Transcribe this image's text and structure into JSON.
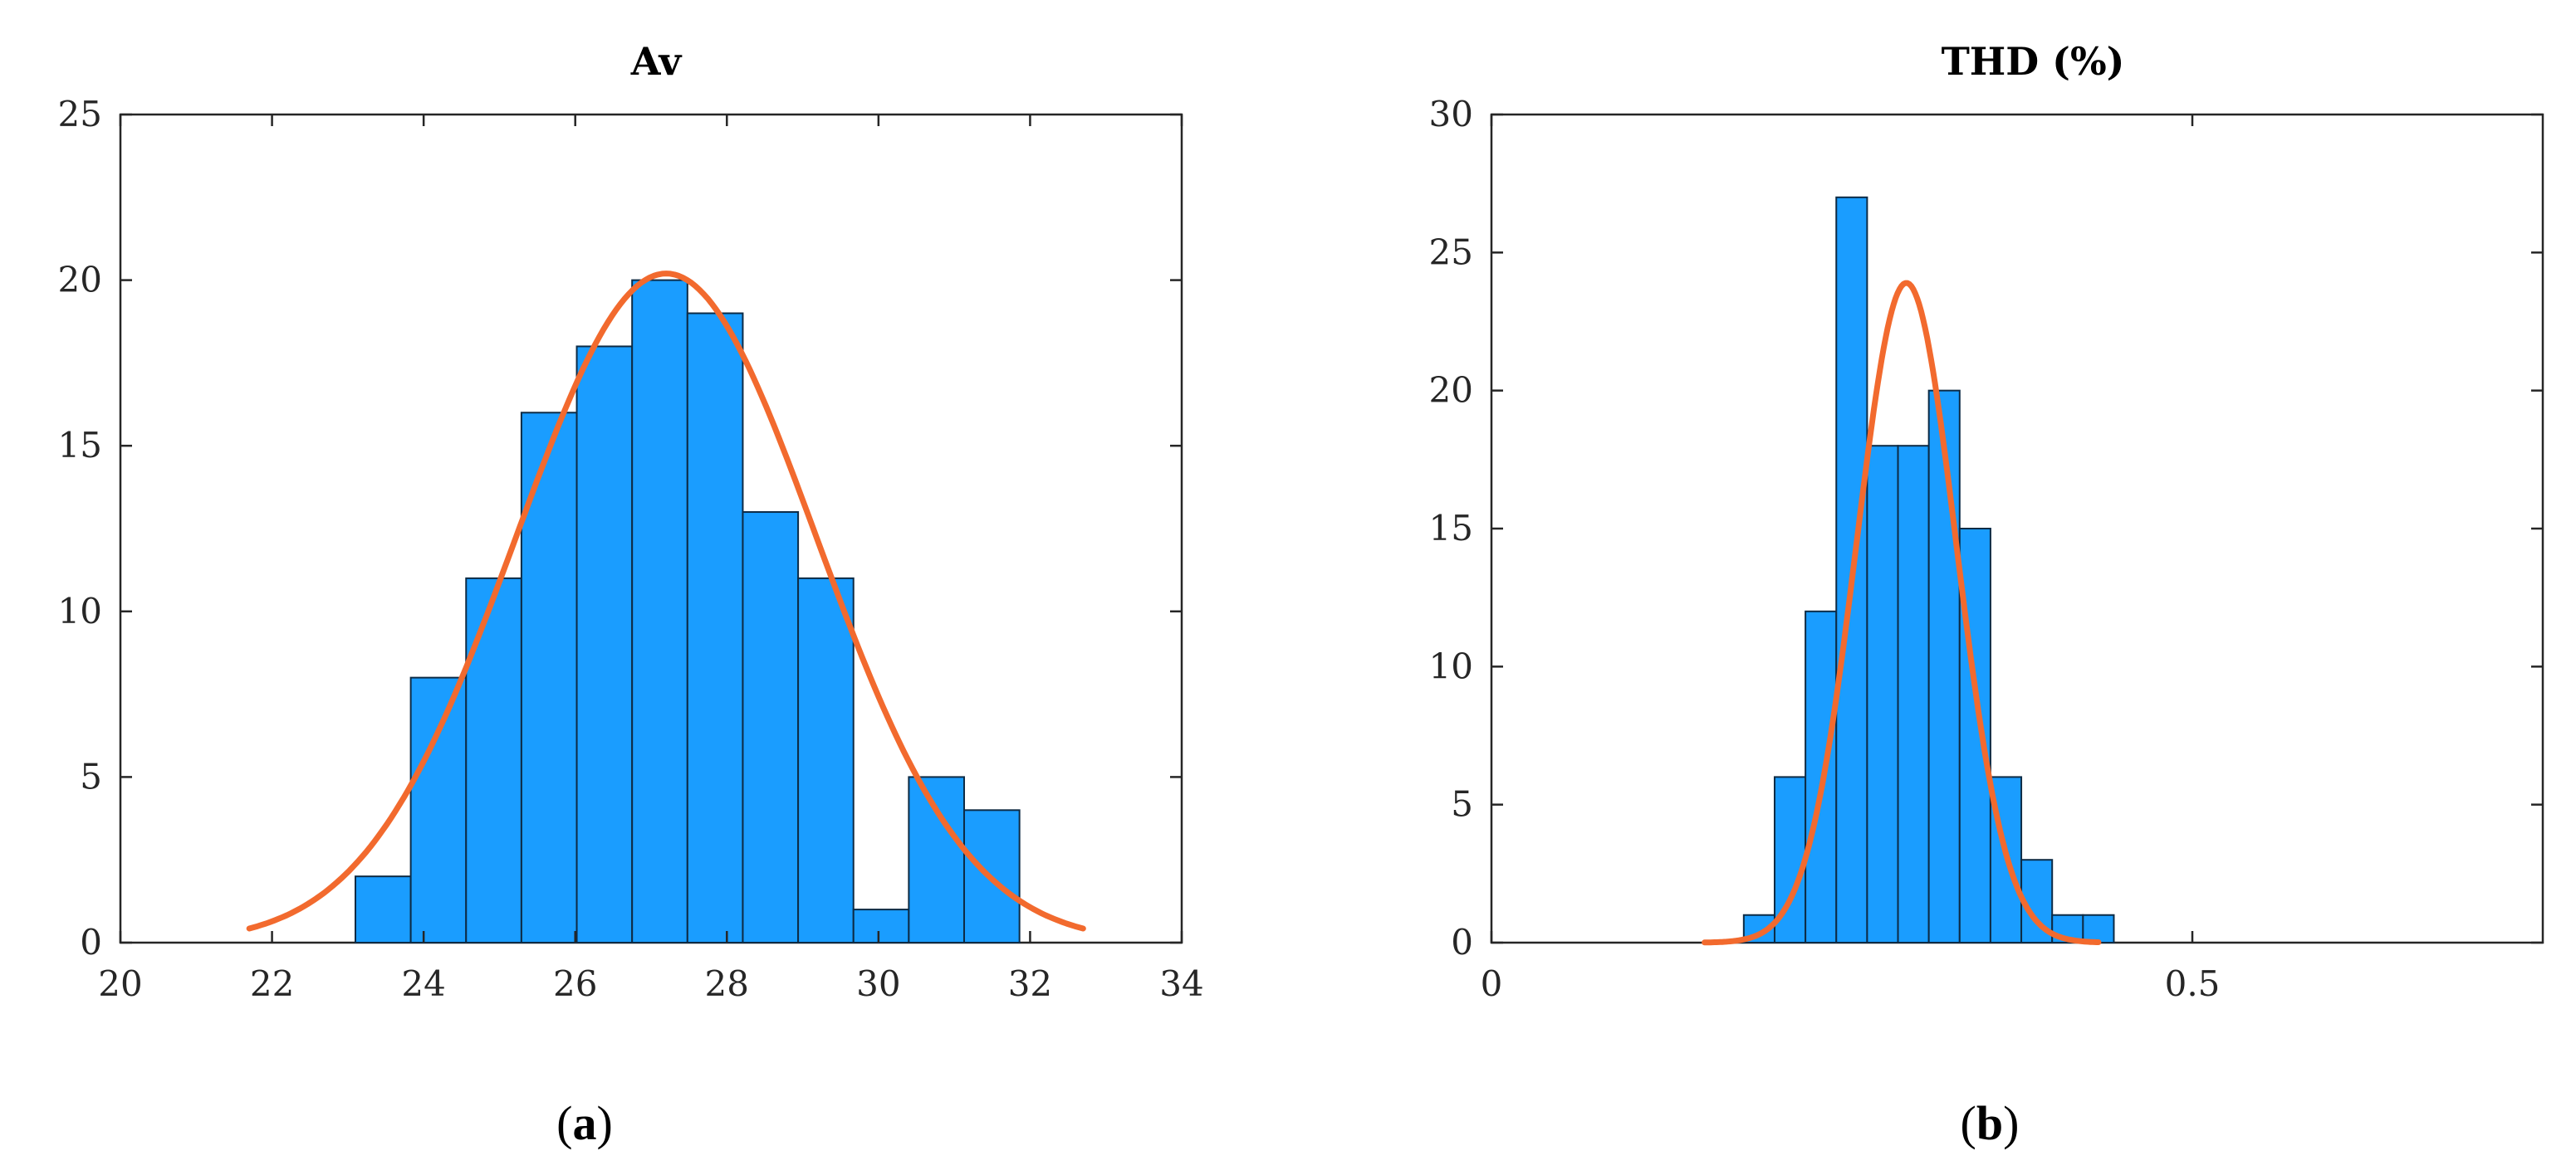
{
  "chart_data": [
    {
      "id": "a",
      "type": "bar",
      "title": "Av",
      "caption_prefix": "(",
      "caption_letter": "a",
      "caption_suffix": ")",
      "xlabel": "",
      "ylabel": "",
      "xlim": [
        20,
        34
      ],
      "ylim": [
        0,
        25
      ],
      "xticks": [
        20,
        22,
        24,
        26,
        28,
        30,
        32,
        34
      ],
      "yticks": [
        0,
        5,
        10,
        15,
        20,
        25
      ],
      "bins": [
        {
          "x0": 23.1,
          "x1": 23.83,
          "count": 2
        },
        {
          "x0": 23.83,
          "x1": 24.56,
          "count": 8
        },
        {
          "x0": 24.56,
          "x1": 25.29,
          "count": 11
        },
        {
          "x0": 25.29,
          "x1": 26.02,
          "count": 16
        },
        {
          "x0": 26.02,
          "x1": 26.75,
          "count": 18
        },
        {
          "x0": 26.75,
          "x1": 27.48,
          "count": 20
        },
        {
          "x0": 27.48,
          "x1": 28.21,
          "count": 19
        },
        {
          "x0": 28.21,
          "x1": 28.94,
          "count": 13
        },
        {
          "x0": 28.94,
          "x1": 29.67,
          "count": 11
        },
        {
          "x0": 29.67,
          "x1": 30.4,
          "count": 1
        },
        {
          "x0": 30.4,
          "x1": 31.13,
          "count": 5
        },
        {
          "x0": 31.13,
          "x1": 31.86,
          "count": 4
        }
      ],
      "fit": {
        "type": "normal",
        "mean": 27.2,
        "sd": 1.98,
        "peak": 20.2,
        "x_range": [
          21.7,
          32.7
        ]
      },
      "colors": {
        "bar": "#1a9dff",
        "fit": "#f26a2e"
      },
      "grid": false
    },
    {
      "id": "b",
      "type": "bar",
      "title": "THD (%)",
      "caption_prefix": "(",
      "caption_letter": "b",
      "caption_suffix": ")",
      "xlabel": "",
      "ylabel": "",
      "xlim": [
        0,
        0.75
      ],
      "ylim": [
        0,
        30
      ],
      "xticks": [
        0,
        0.5
      ],
      "yticks": [
        0,
        5,
        10,
        15,
        20,
        25,
        30
      ],
      "bins": [
        {
          "x0": 0.18,
          "x1": 0.202,
          "count": 1
        },
        {
          "x0": 0.202,
          "x1": 0.224,
          "count": 6
        },
        {
          "x0": 0.224,
          "x1": 0.246,
          "count": 12
        },
        {
          "x0": 0.246,
          "x1": 0.268,
          "count": 27
        },
        {
          "x0": 0.268,
          "x1": 0.29,
          "count": 18
        },
        {
          "x0": 0.29,
          "x1": 0.312,
          "count": 18
        },
        {
          "x0": 0.312,
          "x1": 0.334,
          "count": 20
        },
        {
          "x0": 0.334,
          "x1": 0.356,
          "count": 15
        },
        {
          "x0": 0.356,
          "x1": 0.378,
          "count": 6
        },
        {
          "x0": 0.378,
          "x1": 0.4,
          "count": 3
        },
        {
          "x0": 0.4,
          "x1": 0.422,
          "count": 1
        },
        {
          "x0": 0.422,
          "x1": 0.444,
          "count": 1
        }
      ],
      "fit": {
        "type": "normal",
        "mean": 0.296,
        "sd": 0.0355,
        "peak": 23.9,
        "x_range": [
          0.152,
          0.433
        ]
      },
      "colors": {
        "bar": "#1a9dff",
        "fit": "#f26a2e"
      },
      "grid": false
    }
  ]
}
